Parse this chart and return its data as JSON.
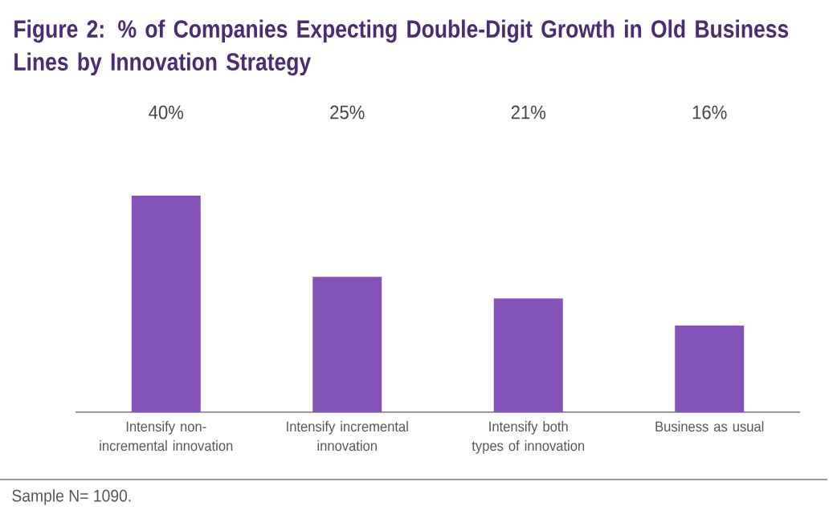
{
  "chart_data": {
    "type": "bar",
    "title": "Figure 2: % of Companies Expecting Double-Digit Growth in Old Business Lines by Innovation Strategy",
    "categories": [
      "Intensify non-incremental innovation",
      "Intensify incremental innovation",
      "Intensify both types of innovation",
      "Business as usual"
    ],
    "values": [
      40,
      25,
      21,
      16
    ],
    "value_labels": [
      "40%",
      "25%",
      "21%",
      "16%"
    ],
    "color": "#8353ba",
    "annotations": [
      "Sample N= 1090."
    ]
  }
}
